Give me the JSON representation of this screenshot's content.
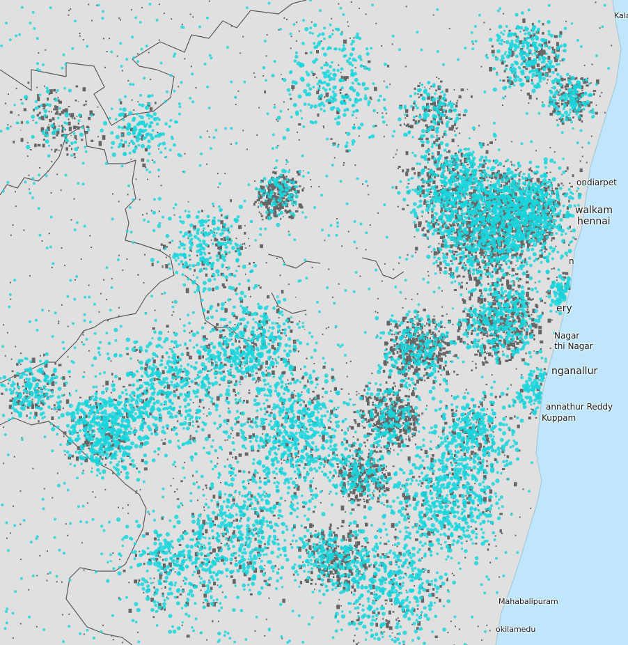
{
  "map": {
    "colors": {
      "sea": "#bfe6fb",
      "land": "#e0e0e0",
      "border": "#5a5a5a",
      "building_footprint": "#666666",
      "highlight_points": "#19d5dd"
    },
    "layers": [
      "district-boundaries",
      "building-footprints",
      "highlighted-points"
    ]
  },
  "places": [
    {
      "key": "kala",
      "name": "Kala",
      "size": "small"
    },
    {
      "key": "tondiarpet",
      "name": "ondiarpet",
      "size": "medium"
    },
    {
      "key": "walkam",
      "name": "walkam",
      "size": "large"
    },
    {
      "key": "chennai",
      "name": "hennai",
      "size": "large"
    },
    {
      "key": "n-fragment",
      "name": "n",
      "size": "medium"
    },
    {
      "key": "ery",
      "name": "ery",
      "size": "large"
    },
    {
      "key": "nagar",
      "name": "Nagar",
      "size": "medium"
    },
    {
      "key": "thi-nagar",
      "name": "thi Nagar",
      "size": "medium"
    },
    {
      "key": "nganallur",
      "name": "nganallur",
      "size": "large"
    },
    {
      "key": "kannathur",
      "name": "annathur Reddy",
      "size": "medium"
    },
    {
      "key": "kuppam",
      "name": "Kuppam",
      "size": "medium"
    },
    {
      "key": "mahabalipuram",
      "name": "Mahabalipuram",
      "size": "small"
    },
    {
      "key": "kokilamedu",
      "name": "okilamedu",
      "size": "small"
    }
  ]
}
